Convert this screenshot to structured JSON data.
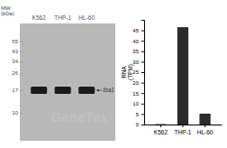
{
  "chart_data": {
    "type": "bar",
    "categories": [
      "K562",
      "THP-1",
      "HL-60"
    ],
    "values": [
      0.2,
      46.5,
      5.2
    ],
    "color": "#2b2b2b",
    "ylim": [
      0,
      50
    ],
    "yticks": [
      0,
      5,
      10,
      15,
      20,
      25,
      30,
      35,
      40,
      45
    ],
    "y_label": "RNA\n(TPM)",
    "annotations": [
      "MW\n(kDa)",
      "55",
      "43",
      "34",
      "26",
      "17",
      "10",
      "Iba1",
      "GeneTex"
    ]
  }
}
